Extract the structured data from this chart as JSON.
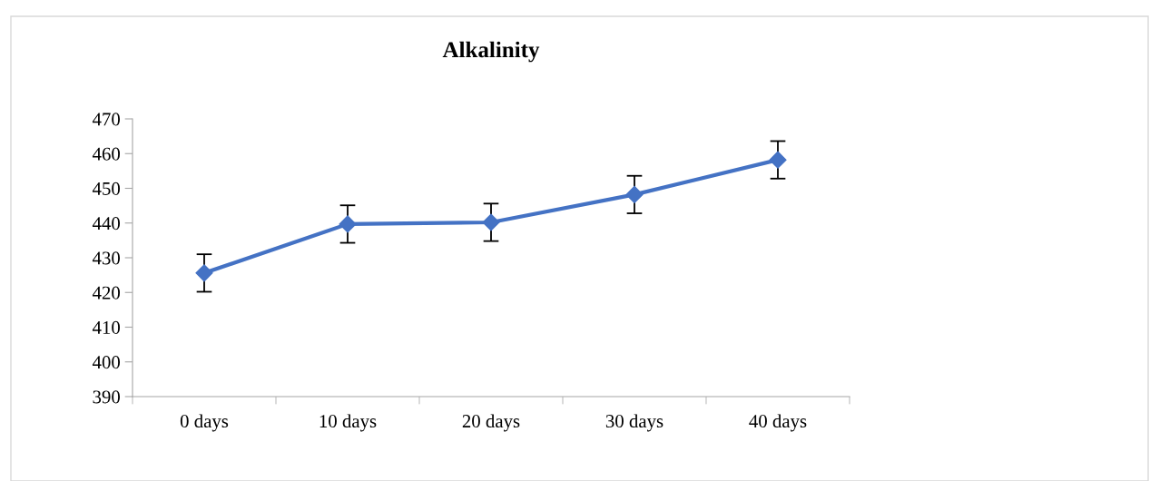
{
  "chart_data": {
    "type": "line",
    "title": "Alkalinity",
    "categories": [
      "0 days",
      "10 days",
      "20 days",
      "30 days",
      "40 days"
    ],
    "series": [
      {
        "color": "#4472c4",
        "values": [
          425.6,
          439.7,
          440.2,
          448.2,
          458.2
        ],
        "errors": [
          5.4,
          5.4,
          5.4,
          5.4,
          5.4
        ]
      }
    ],
    "ylim": [
      390,
      470
    ],
    "yticks": [
      390,
      400,
      410,
      420,
      430,
      440,
      450,
      460,
      470
    ],
    "grid": false,
    "legend": false,
    "marker": "diamond",
    "line_style": "solid"
  }
}
